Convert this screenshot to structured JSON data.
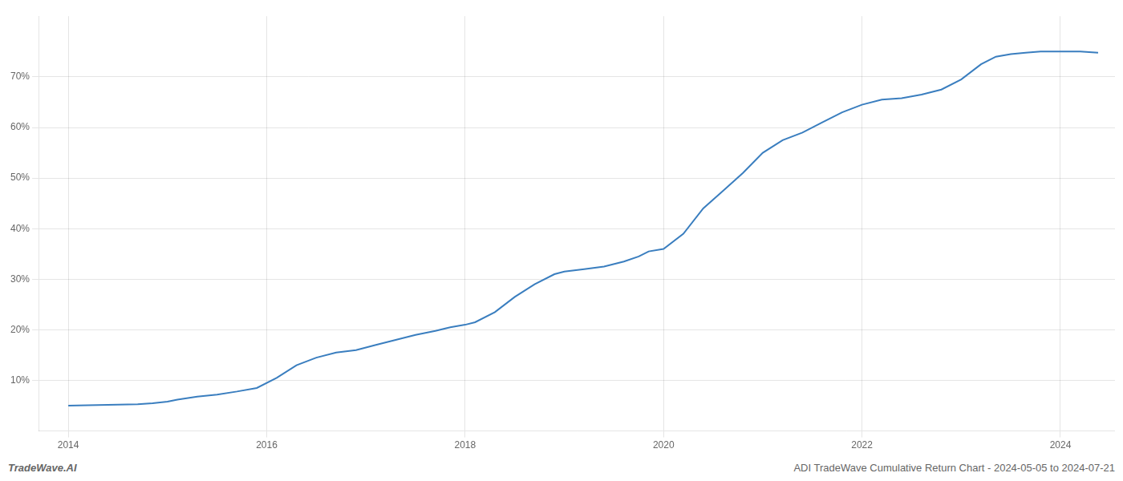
{
  "chart_data": {
    "type": "line",
    "title": "ADI TradeWave Cumulative Return Chart - 2024-05-05 to 2024-07-21",
    "annotations": [
      "TradeWave.AI"
    ],
    "x": [
      2014.0,
      2014.2,
      2014.5,
      2014.7,
      2014.85,
      2015.0,
      2015.1,
      2015.3,
      2015.5,
      2015.7,
      2015.9,
      2016.1,
      2016.3,
      2016.5,
      2016.7,
      2016.9,
      2017.1,
      2017.3,
      2017.5,
      2017.7,
      2017.85,
      2018.0,
      2018.1,
      2018.3,
      2018.5,
      2018.7,
      2018.9,
      2019.0,
      2019.2,
      2019.4,
      2019.6,
      2019.75,
      2019.85,
      2020.0,
      2020.2,
      2020.4,
      2020.6,
      2020.8,
      2021.0,
      2021.2,
      2021.4,
      2021.6,
      2021.8,
      2022.0,
      2022.2,
      2022.4,
      2022.6,
      2022.8,
      2023.0,
      2023.2,
      2023.35,
      2023.5,
      2023.65,
      2023.8,
      2024.0,
      2024.2,
      2024.38
    ],
    "values": [
      5.0,
      5.1,
      5.2,
      5.3,
      5.5,
      5.8,
      6.2,
      6.8,
      7.2,
      7.8,
      8.5,
      10.5,
      13.0,
      14.5,
      15.5,
      16.0,
      17.0,
      18.0,
      19.0,
      19.8,
      20.5,
      21.0,
      21.5,
      23.5,
      26.5,
      29.0,
      31.0,
      31.5,
      32.0,
      32.5,
      33.5,
      34.5,
      35.5,
      36.0,
      39.0,
      44.0,
      47.5,
      51.0,
      55.0,
      57.5,
      59.0,
      61.0,
      63.0,
      64.5,
      65.5,
      65.8,
      66.5,
      67.5,
      69.5,
      72.5,
      74.0,
      74.5,
      74.8,
      75.0,
      75.0,
      75.0,
      74.8
    ],
    "color": "#3a7ebf",
    "xlim": [
      2013.7,
      2024.55
    ],
    "ylim": [
      0,
      82
    ],
    "xticks": [
      2014,
      2016,
      2018,
      2020,
      2022,
      2024
    ],
    "yticks": [
      {
        "value": 10,
        "label": "10%"
      },
      {
        "value": 20,
        "label": "20%"
      },
      {
        "value": 30,
        "label": "30%"
      },
      {
        "value": 40,
        "label": "40%"
      },
      {
        "value": 50,
        "label": "50%"
      },
      {
        "value": 60,
        "label": "60%"
      },
      {
        "value": 70,
        "label": "70%"
      }
    ],
    "grid": true
  }
}
